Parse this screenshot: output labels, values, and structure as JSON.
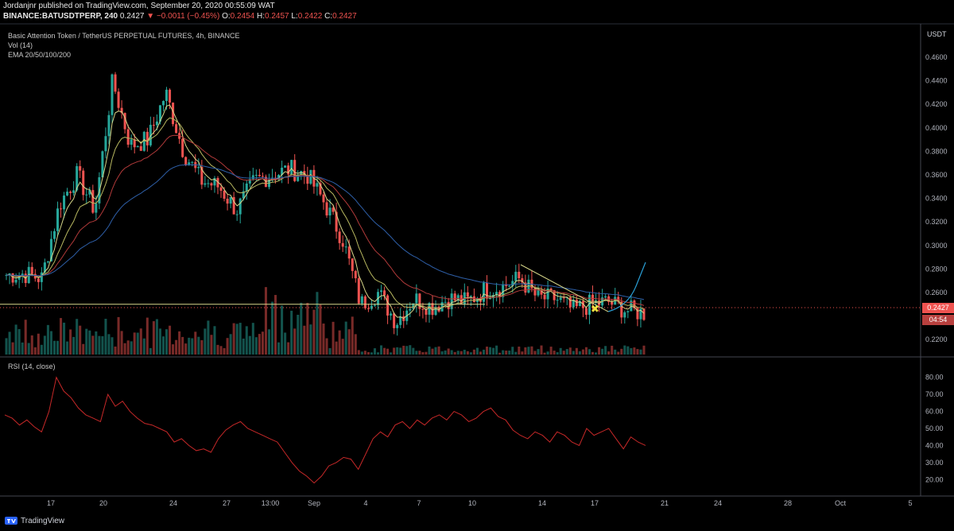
{
  "header": {
    "published_line": "Jordanjnr published on TradingView.com, September 20, 2020 00:55:09 WAT",
    "symbol": "BINANCE:BATUSDTPERP, 240",
    "last": "0.2427",
    "change": "−0.0011 (−0.45%)",
    "o_label": "O:",
    "o": "0.2454",
    "h_label": "H:",
    "h": "0.2457",
    "l_label": "L:",
    "l": "0.2422",
    "c_label": "C:",
    "c": "0.2427"
  },
  "legend": {
    "title": "Basic Attention Token / TetherUS PERPETUAL FUTURES, 4h, BINANCE",
    "volume": "Vol (14)",
    "ema": "EMA 20/50/100/200",
    "rsi": "RSI (14, close)"
  },
  "price_axis": {
    "currency": "USDT",
    "last_price_label": "0.2427",
    "countdown_label": "04:54"
  },
  "branding": {
    "footer": "TradingView"
  },
  "colors": {
    "up": "#26a69a",
    "down": "#ef5350",
    "ema20": "#d6d68a",
    "ema50": "#b8b860",
    "ema100": "#b23a3a",
    "ema200": "#2e5fa8",
    "rsi": "#c62828",
    "annotation": "#f0e040"
  },
  "chart_data": [
    {
      "type": "candlestick",
      "ylim": [
        0.21,
        0.46
      ],
      "y_ticks": [
        "0.4600",
        "0.4400",
        "0.4200",
        "0.4000",
        "0.3800",
        "0.3600",
        "0.3400",
        "0.3200",
        "0.3000",
        "0.2800",
        "0.2600",
        "0.2427",
        "0.2200"
      ],
      "x_ticks": [
        "17",
        "20",
        "24",
        "27",
        "13:00",
        "Sep",
        "4",
        "7",
        "10",
        "14",
        "17",
        "21",
        "24",
        "28",
        "Oct",
        "5"
      ],
      "close_path": [
        {
          "x": "Aug 15",
          "y": 0.275
        },
        {
          "x": "Aug 16",
          "y": 0.276
        },
        {
          "x": "Aug 17",
          "y": 0.272
        },
        {
          "x": "Aug 18",
          "y": 0.335
        },
        {
          "x": "Aug 19",
          "y": 0.36
        },
        {
          "x": "Aug 20",
          "y": 0.33
        },
        {
          "x": "Aug 21",
          "y": 0.44
        },
        {
          "x": "Aug 22",
          "y": 0.385
        },
        {
          "x": "Aug 23",
          "y": 0.39
        },
        {
          "x": "Aug 24",
          "y": 0.43
        },
        {
          "x": "Aug 25",
          "y": 0.38
        },
        {
          "x": "Aug 26",
          "y": 0.355
        },
        {
          "x": "Aug 27",
          "y": 0.35
        },
        {
          "x": "Aug 28",
          "y": 0.33
        },
        {
          "x": "Aug 29",
          "y": 0.355
        },
        {
          "x": "Aug 30",
          "y": 0.36
        },
        {
          "x": "Aug 31",
          "y": 0.365
        },
        {
          "x": "Sep 1",
          "y": 0.36
        },
        {
          "x": "Sep 2",
          "y": 0.335
        },
        {
          "x": "Sep 3",
          "y": 0.305
        },
        {
          "x": "Sep 4",
          "y": 0.25
        },
        {
          "x": "Sep 5",
          "y": 0.26
        },
        {
          "x": "Sep 6",
          "y": 0.235
        },
        {
          "x": "Sep 7",
          "y": 0.255
        },
        {
          "x": "Sep 8",
          "y": 0.248
        },
        {
          "x": "Sep 9",
          "y": 0.255
        },
        {
          "x": "Sep 10",
          "y": 0.252
        },
        {
          "x": "Sep 11",
          "y": 0.262
        },
        {
          "x": "Sep 12",
          "y": 0.265
        },
        {
          "x": "Sep 13",
          "y": 0.272
        },
        {
          "x": "Sep 14",
          "y": 0.255
        },
        {
          "x": "Sep 15",
          "y": 0.255
        },
        {
          "x": "Sep 16",
          "y": 0.245
        },
        {
          "x": "Sep 17",
          "y": 0.25
        },
        {
          "x": "Sep 18",
          "y": 0.252
        },
        {
          "x": "Sep 19",
          "y": 0.245
        },
        {
          "x": "Sep 20",
          "y": 0.2427
        }
      ],
      "horizontal_line": 0.25
    },
    {
      "type": "line",
      "title": "RSI (14, close)",
      "ylim": [
        15,
        85
      ],
      "y_ticks": [
        "80.00",
        "70.00",
        "60.00",
        "50.00",
        "40.00",
        "30.00",
        "20.00"
      ],
      "values": [
        58,
        56,
        52,
        55,
        51,
        48,
        60,
        80,
        72,
        68,
        62,
        58,
        56,
        54,
        70,
        63,
        66,
        60,
        56,
        53,
        52,
        50,
        48,
        42,
        44,
        40,
        37,
        38,
        36,
        44,
        49,
        52,
        54,
        50,
        48,
        46,
        44,
        42,
        36,
        30,
        25,
        22,
        18,
        22,
        28,
        30,
        33,
        32,
        26,
        35,
        44,
        48,
        45,
        52,
        54,
        50,
        55,
        52,
        56,
        58,
        55,
        60,
        58,
        54,
        56,
        60,
        62,
        57,
        55,
        49,
        46,
        44,
        48,
        46,
        42,
        48,
        46,
        42,
        40,
        50,
        46,
        48,
        50,
        44,
        38,
        45,
        42,
        40
      ]
    }
  ]
}
